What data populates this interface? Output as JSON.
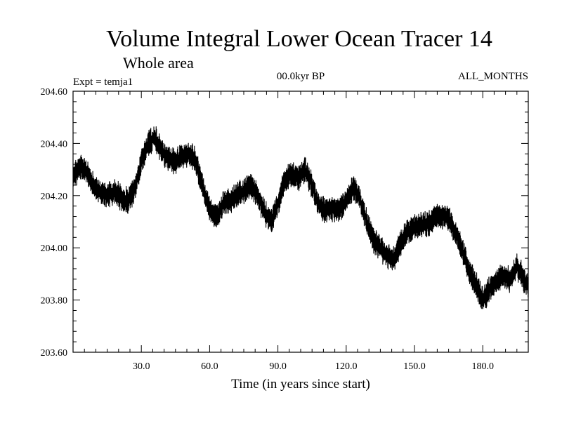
{
  "chart_data": {
    "type": "line",
    "title": "Volume Integral Lower Ocean Tracer 14",
    "subtitle": "Whole area",
    "expt_label": "Expt = temja1",
    "period_label": "00.0kyr BP",
    "months_label": "ALL_MONTHS",
    "xlabel": "Time (in years since start)",
    "ylabel": "",
    "xlim": [
      0,
      200
    ],
    "ylim": [
      203.6,
      204.6
    ],
    "x_ticks": [
      30,
      60,
      90,
      120,
      150,
      180
    ],
    "x_tick_labels": [
      "30.0",
      "60.0",
      "90.0",
      "120.0",
      "150.0",
      "180.0"
    ],
    "y_ticks": [
      203.6,
      203.8,
      204.0,
      204.2,
      204.4,
      204.6
    ],
    "y_tick_labels": [
      "203.60",
      "203.80",
      "204.00",
      "204.20",
      "204.40",
      "204.60"
    ],
    "line_color": "#000000",
    "noise_amplitude": 0.045,
    "series": [
      {
        "name": "Volume Integral Lower Ocean Tracer 14",
        "x": [
          0,
          3,
          6,
          9,
          12,
          15,
          18,
          21,
          24,
          27,
          30,
          33,
          36,
          39,
          42,
          45,
          48,
          51,
          54,
          57,
          60,
          63,
          66,
          69,
          72,
          75,
          78,
          81,
          84,
          87,
          90,
          93,
          96,
          99,
          102,
          105,
          108,
          111,
          114,
          117,
          120,
          123,
          126,
          129,
          132,
          135,
          138,
          141,
          144,
          147,
          150,
          153,
          156,
          159,
          162,
          165,
          168,
          171,
          174,
          177,
          180,
          183,
          186,
          189,
          192,
          195,
          198,
          200
        ],
        "values": [
          204.27,
          204.31,
          204.29,
          204.24,
          204.21,
          204.2,
          204.22,
          204.19,
          204.18,
          204.22,
          204.33,
          204.4,
          204.42,
          204.37,
          204.34,
          204.33,
          204.35,
          204.36,
          204.33,
          204.23,
          204.15,
          204.12,
          204.17,
          204.18,
          204.2,
          204.22,
          204.24,
          204.2,
          204.14,
          204.1,
          204.17,
          204.26,
          204.28,
          204.27,
          204.3,
          204.24,
          204.16,
          204.14,
          204.15,
          204.15,
          204.18,
          204.23,
          204.19,
          204.1,
          204.03,
          204.0,
          203.97,
          203.96,
          204.02,
          204.06,
          204.08,
          204.09,
          204.09,
          204.12,
          204.12,
          204.11,
          204.06,
          203.99,
          203.91,
          203.86,
          203.8,
          203.84,
          203.87,
          203.89,
          203.88,
          203.93,
          203.88,
          203.85
        ]
      }
    ]
  }
}
